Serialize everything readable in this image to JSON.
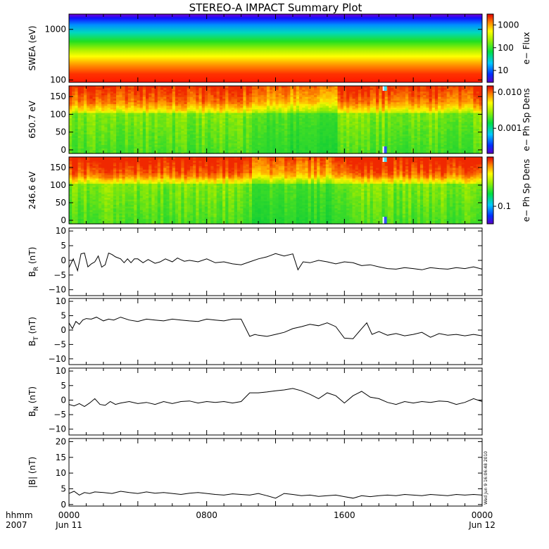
{
  "title": "STEREO-A IMPACT Summary Plot",
  "footer": {
    "row1_label": "hhmm",
    "row2_label": "2007",
    "ticks": [
      {
        "time": "0000",
        "date": "Jun 11",
        "hour": 0
      },
      {
        "time": "0800",
        "date": "",
        "hour": 8
      },
      {
        "time": "1600",
        "date": "",
        "hour": 16
      },
      {
        "time": "0000",
        "date": "Jun 12",
        "hour": 24
      }
    ]
  },
  "timestamp": "Wed Jun  9 16:06:48 2010",
  "chart_data": [
    {
      "type": "heatmap",
      "ylabel": "SWEA (eV)",
      "yscale": "log",
      "ylim": [
        90,
        2000
      ],
      "yticks": [
        100,
        1000
      ],
      "ytick_labels": [
        "100",
        "1000"
      ],
      "colorbar": {
        "label": "e− Flux",
        "scale": "log",
        "ticks": [
          "10",
          "100",
          "1000"
        ],
        "tick_values": [
          10,
          100,
          1000
        ],
        "range": [
          3,
          3000
        ]
      },
      "description_profile": [
        {
          "energy": 100,
          "level": 1.0
        },
        {
          "energy": 200,
          "level": 0.85
        },
        {
          "energy": 400,
          "level": 0.55
        },
        {
          "energy": 700,
          "level": 0.35
        },
        {
          "energy": 1000,
          "level": 0.22
        },
        {
          "energy": 1500,
          "level": 0.08
        },
        {
          "energy": 2000,
          "level": 0.0
        }
      ]
    },
    {
      "type": "heatmap",
      "ylabel": "650.7 eV",
      "ylim": [
        -10,
        180
      ],
      "yticks": [
        0,
        50,
        100,
        150
      ],
      "ytick_labels": [
        "0",
        "50",
        "100",
        "150"
      ],
      "colorbar": {
        "label": "e− Ph Sp Dens",
        "scale": "log",
        "ticks": [
          "0.010",
          "0.001"
        ],
        "tick_values": [
          0.01,
          0.001
        ],
        "range": [
          0.0002,
          0.015
        ]
      },
      "gap_hour": 18.3
    },
    {
      "type": "heatmap",
      "ylabel": "246.6 eV",
      "ylim": [
        -10,
        180
      ],
      "yticks": [
        0,
        50,
        100,
        150
      ],
      "ytick_labels": [
        "0",
        "50",
        "100",
        "150"
      ],
      "colorbar": {
        "label": "e− Ph Sp Dens",
        "scale": "log",
        "ticks": [
          "0.1"
        ],
        "tick_values": [
          0.1
        ],
        "range": [
          0.05,
          0.7
        ]
      },
      "gap_hour": 18.3
    },
    {
      "type": "line",
      "ylabel": "B",
      "ylabel_sub": "R",
      "ylabel_unit": "(nT)",
      "ylim": [
        -12,
        11
      ],
      "yticks": [
        -10,
        -5,
        0,
        5,
        10
      ],
      "ytick_labels": [
        "−10",
        "−5",
        "0",
        "5",
        "10"
      ],
      "x": [
        0,
        0.25,
        0.5,
        0.7,
        0.9,
        1.1,
        1.3,
        1.5,
        1.7,
        1.9,
        2.1,
        2.3,
        2.5,
        2.7,
        3.0,
        3.2,
        3.4,
        3.6,
        3.8,
        4.0,
        4.3,
        4.6,
        5.0,
        5.3,
        5.6,
        6.0,
        6.3,
        6.7,
        7.0,
        7.5,
        8.0,
        8.5,
        9.0,
        9.5,
        10.0,
        10.5,
        11.0,
        11.5,
        12.0,
        12.5,
        13.0,
        13.3,
        13.6,
        14.0,
        14.5,
        15.0,
        15.5,
        16.0,
        16.5,
        17.0,
        17.5,
        18.0,
        18.5,
        19.0,
        19.5,
        20.0,
        20.5,
        21.0,
        21.5,
        22.0,
        22.5,
        23.0,
        23.5,
        24.0
      ],
      "y": [
        -2.5,
        0.5,
        -3.5,
        2.2,
        2.5,
        -2.2,
        -1.2,
        -0.5,
        1.5,
        -2.3,
        -1.5,
        2.5,
        2.0,
        1.2,
        0.5,
        -0.8,
        0.5,
        -0.8,
        0.5,
        0.5,
        -0.8,
        0.3,
        -1.0,
        -0.5,
        0.5,
        -0.5,
        0.8,
        -0.3,
        0.0,
        -0.5,
        0.5,
        -0.8,
        -0.5,
        -1.2,
        -1.5,
        -0.5,
        0.5,
        1.2,
        2.3,
        1.5,
        2.2,
        -3.2,
        -0.5,
        -0.8,
        0.0,
        -0.5,
        -1.2,
        -0.5,
        -0.8,
        -1.8,
        -1.5,
        -2.2,
        -2.8,
        -3.0,
        -2.5,
        -2.8,
        -3.2,
        -2.5,
        -2.8,
        -3.0,
        -2.5,
        -2.8,
        -2.2,
        -3.0
      ]
    },
    {
      "type": "line",
      "ylabel": "B",
      "ylabel_sub": "T",
      "ylabel_unit": "(nT)",
      "ylim": [
        -12,
        11
      ],
      "yticks": [
        -10,
        -5,
        0,
        5,
        10
      ],
      "ytick_labels": [
        "−10",
        "−5",
        "0",
        "5",
        "10"
      ],
      "x": [
        0,
        0.2,
        0.4,
        0.6,
        0.8,
        1.0,
        1.3,
        1.6,
        2.0,
        2.3,
        2.6,
        3.0,
        3.5,
        4.0,
        4.5,
        5.0,
        5.5,
        6.0,
        6.5,
        7.0,
        7.5,
        8.0,
        8.5,
        9.0,
        9.5,
        10.0,
        10.5,
        10.8,
        11.0,
        11.5,
        12.0,
        12.5,
        13.0,
        13.5,
        14.0,
        14.5,
        15.0,
        15.5,
        16.0,
        16.5,
        17.0,
        17.3,
        17.6,
        18.0,
        18.5,
        19.0,
        19.5,
        20.0,
        20.5,
        21.0,
        21.5,
        22.0,
        22.5,
        23.0,
        23.5,
        24.0
      ],
      "y": [
        2.5,
        0.5,
        3.0,
        2.0,
        3.5,
        4.0,
        3.8,
        4.5,
        3.2,
        3.8,
        3.5,
        4.5,
        3.5,
        3.0,
        3.8,
        3.5,
        3.2,
        3.8,
        3.5,
        3.2,
        3.0,
        3.8,
        3.5,
        3.2,
        3.8,
        3.8,
        -2.2,
        -1.5,
        -1.8,
        -2.2,
        -1.5,
        -0.8,
        0.5,
        1.2,
        2.0,
        1.5,
        2.5,
        1.2,
        -2.8,
        -3.0,
        0.5,
        2.5,
        -1.5,
        -0.5,
        -1.8,
        -1.2,
        -2.0,
        -1.5,
        -0.8,
        -2.5,
        -1.2,
        -1.8,
        -1.5,
        -2.0,
        -1.5,
        -2.0
      ]
    },
    {
      "type": "line",
      "ylabel": "B",
      "ylabel_sub": "N",
      "ylabel_unit": "(nT)",
      "ylim": [
        -12,
        11
      ],
      "yticks": [
        -10,
        -5,
        0,
        5,
        10
      ],
      "ytick_labels": [
        "−10",
        "−5",
        "0",
        "5",
        "10"
      ],
      "x": [
        0,
        0.3,
        0.6,
        0.9,
        1.2,
        1.5,
        1.8,
        2.1,
        2.4,
        2.7,
        3.0,
        3.5,
        4.0,
        4.5,
        5.0,
        5.5,
        6.0,
        6.5,
        7.0,
        7.5,
        8.0,
        8.5,
        9.0,
        9.5,
        10.0,
        10.5,
        11.0,
        11.5,
        12.0,
        12.5,
        13.0,
        13.5,
        14.0,
        14.5,
        15.0,
        15.5,
        16.0,
        16.5,
        17.0,
        17.5,
        18.0,
        18.5,
        19.0,
        19.5,
        20.0,
        20.5,
        21.0,
        21.5,
        22.0,
        22.5,
        23.0,
        23.5,
        24.0
      ],
      "y": [
        -1.5,
        -2.0,
        -1.2,
        -2.2,
        -1.0,
        0.5,
        -1.5,
        -1.8,
        -0.5,
        -1.5,
        -1.0,
        -0.5,
        -1.2,
        -0.8,
        -1.5,
        -0.5,
        -1.2,
        -0.5,
        -0.3,
        -1.0,
        -0.5,
        -0.8,
        -0.5,
        -1.0,
        -0.5,
        2.5,
        2.5,
        2.8,
        3.2,
        3.5,
        4.0,
        3.2,
        2.0,
        0.5,
        2.5,
        1.5,
        -1.0,
        1.5,
        3.0,
        1.0,
        0.5,
        -0.8,
        -1.5,
        -0.5,
        -1.0,
        -0.5,
        -0.8,
        -0.3,
        -0.5,
        -1.5,
        -0.8,
        0.5,
        -0.5
      ]
    },
    {
      "type": "line",
      "ylabel": "|B|",
      "ylabel_unit": "(nT)",
      "ylim": [
        -0.5,
        21
      ],
      "yticks": [
        0,
        5,
        10,
        15,
        20
      ],
      "ytick_labels": [
        "0",
        "5",
        "10",
        "15",
        "20"
      ],
      "x": [
        0,
        0.3,
        0.6,
        0.9,
        1.2,
        1.5,
        2.0,
        2.5,
        3.0,
        3.5,
        4.0,
        4.5,
        5.0,
        5.5,
        6.0,
        6.5,
        7.0,
        7.5,
        8.0,
        8.5,
        9.0,
        9.5,
        10.0,
        10.5,
        11.0,
        11.5,
        12.0,
        12.5,
        13.0,
        13.5,
        14.0,
        14.5,
        15.0,
        15.5,
        16.0,
        16.5,
        17.0,
        17.5,
        18.0,
        18.5,
        19.0,
        19.5,
        20.0,
        20.5,
        21.0,
        21.5,
        22.0,
        22.5,
        23.0,
        23.5,
        24.0
      ],
      "y": [
        3.5,
        4.2,
        3.0,
        3.8,
        3.5,
        4.0,
        3.8,
        3.5,
        4.2,
        3.8,
        3.5,
        4.0,
        3.6,
        3.8,
        3.5,
        3.2,
        3.6,
        3.8,
        3.5,
        3.2,
        3.0,
        3.4,
        3.2,
        3.0,
        3.5,
        2.8,
        2.0,
        3.5,
        3.2,
        2.8,
        3.0,
        2.6,
        2.8,
        3.0,
        2.5,
        2.0,
        2.8,
        2.5,
        2.8,
        3.0,
        2.8,
        3.2,
        3.0,
        2.8,
        3.2,
        3.0,
        2.8,
        3.2,
        3.0,
        3.2,
        3.0
      ]
    }
  ]
}
